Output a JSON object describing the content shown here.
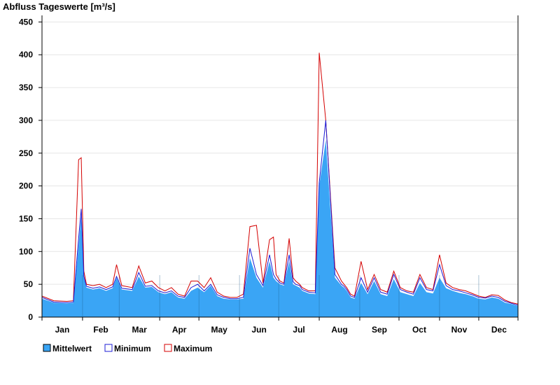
{
  "chart_data": {
    "type": "area",
    "title": "Abfluss Tageswerte [m³/s]",
    "ylim": [
      0,
      460
    ],
    "yticks": [
      0,
      50,
      100,
      150,
      200,
      250,
      300,
      350,
      400,
      450
    ],
    "months": [
      "Jan",
      "Feb",
      "Mar",
      "Apr",
      "May",
      "Jun",
      "Jul",
      "Aug",
      "Sep",
      "Oct",
      "Nov",
      "Dec"
    ],
    "grid": true,
    "legend_position": "bottom-left",
    "colors": {
      "mittelwert_fill": "#3aa5f5",
      "minimum_line": "#1c1cd6",
      "maximum_line": "#d40000",
      "grid": "#e6e6e6",
      "axis": "#000000"
    },
    "series": [
      {
        "name": "Mittelwert",
        "x": [
          1,
          10,
          20,
          25,
          29,
          31,
          33,
          35,
          40,
          45,
          50,
          55,
          58,
          62,
          70,
          75,
          80,
          85,
          90,
          95,
          100,
          105,
          110,
          115,
          120,
          125,
          130,
          135,
          140,
          145,
          150,
          155,
          160,
          165,
          170,
          175,
          178,
          180,
          183,
          186,
          190,
          193,
          195,
          198,
          200,
          205,
          210,
          213,
          218,
          225,
          230,
          232,
          234,
          237,
          240,
          245,
          250,
          255,
          260,
          265,
          270,
          275,
          280,
          285,
          290,
          295,
          300,
          305,
          310,
          315,
          320,
          325,
          330,
          335,
          340,
          345,
          350,
          355,
          360,
          365
        ],
        "values": [
          28,
          22,
          21,
          22,
          110,
          155,
          60,
          45,
          42,
          44,
          40,
          44,
          60,
          42,
          40,
          62,
          45,
          46,
          38,
          35,
          38,
          30,
          28,
          40,
          45,
          38,
          48,
          32,
          28,
          27,
          27,
          28,
          90,
          60,
          45,
          85,
          60,
          55,
          50,
          48,
          85,
          50,
          48,
          45,
          40,
          36,
          35,
          200,
          270,
          60,
          48,
          45,
          40,
          30,
          28,
          52,
          35,
          55,
          35,
          32,
          58,
          38,
          35,
          32,
          52,
          38,
          36,
          60,
          44,
          40,
          37,
          35,
          32,
          28,
          27,
          30,
          28,
          22,
          20,
          17
        ]
      },
      {
        "name": "Minimum",
        "x": [
          1,
          10,
          20,
          25,
          29,
          31,
          33,
          35,
          40,
          45,
          50,
          55,
          58,
          62,
          70,
          75,
          80,
          85,
          90,
          95,
          100,
          105,
          110,
          115,
          120,
          125,
          130,
          135,
          140,
          145,
          150,
          155,
          160,
          165,
          170,
          175,
          178,
          180,
          183,
          186,
          190,
          193,
          195,
          198,
          200,
          205,
          210,
          213,
          218,
          225,
          230,
          232,
          234,
          237,
          240,
          245,
          250,
          255,
          260,
          265,
          270,
          275,
          280,
          285,
          290,
          295,
          300,
          305,
          310,
          315,
          320,
          325,
          330,
          335,
          340,
          345,
          350,
          355,
          360,
          365
        ],
        "values": [
          30,
          23,
          22,
          23,
          120,
          165,
          62,
          47,
          44,
          46,
          42,
          46,
          62,
          44,
          42,
          68,
          47,
          48,
          40,
          37,
          40,
          32,
          30,
          45,
          50,
          40,
          50,
          34,
          30,
          28,
          28,
          30,
          105,
          65,
          48,
          95,
          65,
          58,
          52,
          50,
          95,
          54,
          50,
          48,
          42,
          38,
          37,
          205,
          300,
          65,
          50,
          47,
          42,
          32,
          30,
          60,
          38,
          60,
          38,
          35,
          65,
          42,
          38,
          35,
          60,
          42,
          40,
          80,
          48,
          42,
          40,
          37,
          34,
          30,
          29,
          32,
          30,
          24,
          21,
          18
        ]
      },
      {
        "name": "Maximum",
        "x": [
          1,
          10,
          20,
          25,
          29,
          31,
          33,
          35,
          40,
          45,
          50,
          55,
          58,
          62,
          70,
          75,
          80,
          85,
          90,
          95,
          100,
          105,
          110,
          115,
          120,
          125,
          130,
          135,
          140,
          145,
          150,
          155,
          160,
          165,
          170,
          175,
          178,
          180,
          183,
          186,
          190,
          193,
          195,
          198,
          200,
          205,
          210,
          213,
          218,
          225,
          230,
          232,
          234,
          237,
          240,
          245,
          250,
          255,
          260,
          265,
          270,
          275,
          280,
          285,
          290,
          295,
          300,
          305,
          310,
          315,
          320,
          325,
          330,
          335,
          340,
          345,
          350,
          355,
          360,
          365
        ],
        "values": [
          32,
          25,
          24,
          25,
          240,
          243,
          70,
          50,
          48,
          50,
          45,
          50,
          80,
          48,
          45,
          78,
          52,
          55,
          45,
          40,
          45,
          35,
          32,
          55,
          55,
          45,
          60,
          38,
          32,
          30,
          30,
          35,
          138,
          140,
          52,
          118,
          122,
          65,
          55,
          52,
          120,
          60,
          55,
          50,
          45,
          40,
          40,
          403,
          300,
          75,
          55,
          50,
          45,
          35,
          32,
          85,
          42,
          65,
          42,
          38,
          70,
          45,
          40,
          38,
          65,
          45,
          42,
          95,
          52,
          45,
          42,
          40,
          36,
          32,
          30,
          34,
          33,
          26,
          22,
          20
        ]
      }
    ]
  }
}
